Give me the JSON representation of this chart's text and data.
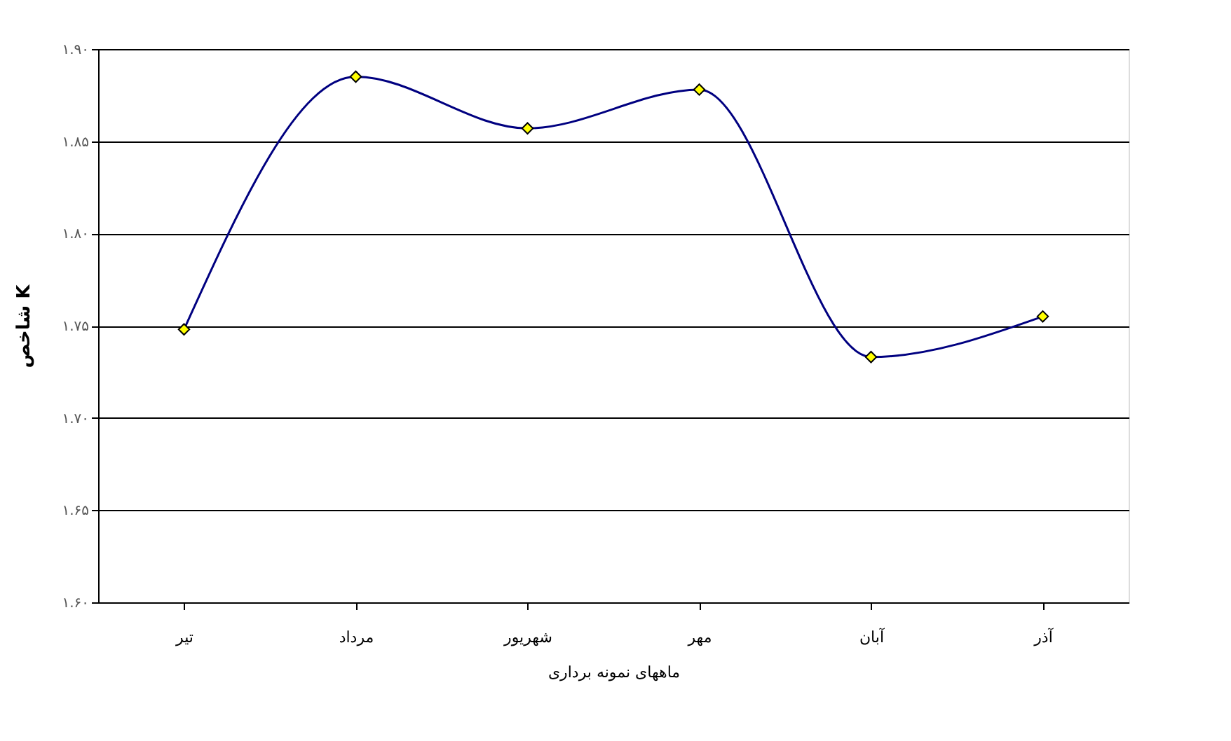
{
  "chart_data": {
    "type": "line",
    "xlabel": "ماههای نمونه برداری",
    "ylabel": "شاخص K",
    "categories": [
      "تیر",
      "مرداد",
      "شهریور",
      "مهر",
      "آبان",
      "آذر"
    ],
    "series": [
      {
        "color": "#000080",
        "values": [
          1.748,
          1.885,
          1.857,
          1.878,
          1.733,
          1.755
        ]
      }
    ],
    "ylim": [
      1.6,
      1.9
    ],
    "yticks": [
      {
        "value": 1.6,
        "label": "۱.۶۰"
      },
      {
        "value": 1.65,
        "label": "۱.۶۵"
      },
      {
        "value": 1.7,
        "label": "۱.۷۰"
      },
      {
        "value": 1.75,
        "label": "۱.۷۵"
      },
      {
        "value": 1.8,
        "label": "۱.۸۰"
      },
      {
        "value": 1.85,
        "label": "۱.۸۵"
      },
      {
        "value": 1.9,
        "label": "۱.۹۰"
      }
    ],
    "grid": "y",
    "marker": "diamond",
    "line_style": "solid"
  }
}
